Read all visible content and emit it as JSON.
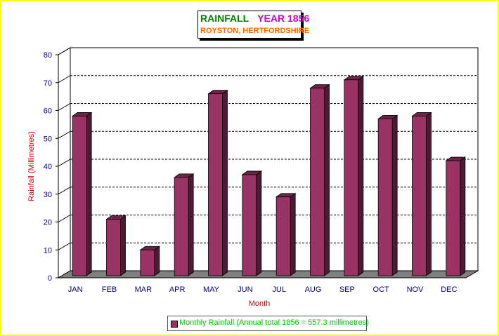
{
  "title": {
    "main": "RAINFALL",
    "year": "YEAR 1856",
    "subtitle": "ROYSTON, HERTFORDSHIRE"
  },
  "colors": {
    "frame": "#ffff00",
    "bar_front": "#993366",
    "bar_side": "#4d1a33",
    "bar_top": "#6e2448",
    "floor": "#808080",
    "axis_text": "#000080",
    "label_text": "#cc0000",
    "legend_text": "#00cc00"
  },
  "chart_data": {
    "type": "bar",
    "categories": [
      "JAN",
      "FEB",
      "MAR",
      "APR",
      "MAY",
      "JUN",
      "JUL",
      "AUG",
      "SEP",
      "OCT",
      "NOV",
      "DEC"
    ],
    "series": [
      {
        "name": "Monthly Rainfall (Annual total 1856 = 557.3 millimetres)",
        "values": [
          58,
          21,
          10,
          36,
          66,
          37,
          29,
          68,
          71,
          57,
          58,
          42
        ]
      }
    ],
    "xlabel": "Month",
    "ylabel": "Rainfall (Millimetres)",
    "ylim": [
      0,
      80
    ],
    "yticks": [
      0,
      10,
      20,
      30,
      40,
      50,
      60,
      70,
      80
    ],
    "grid": true,
    "three_d": true,
    "legend_position": "bottom"
  }
}
